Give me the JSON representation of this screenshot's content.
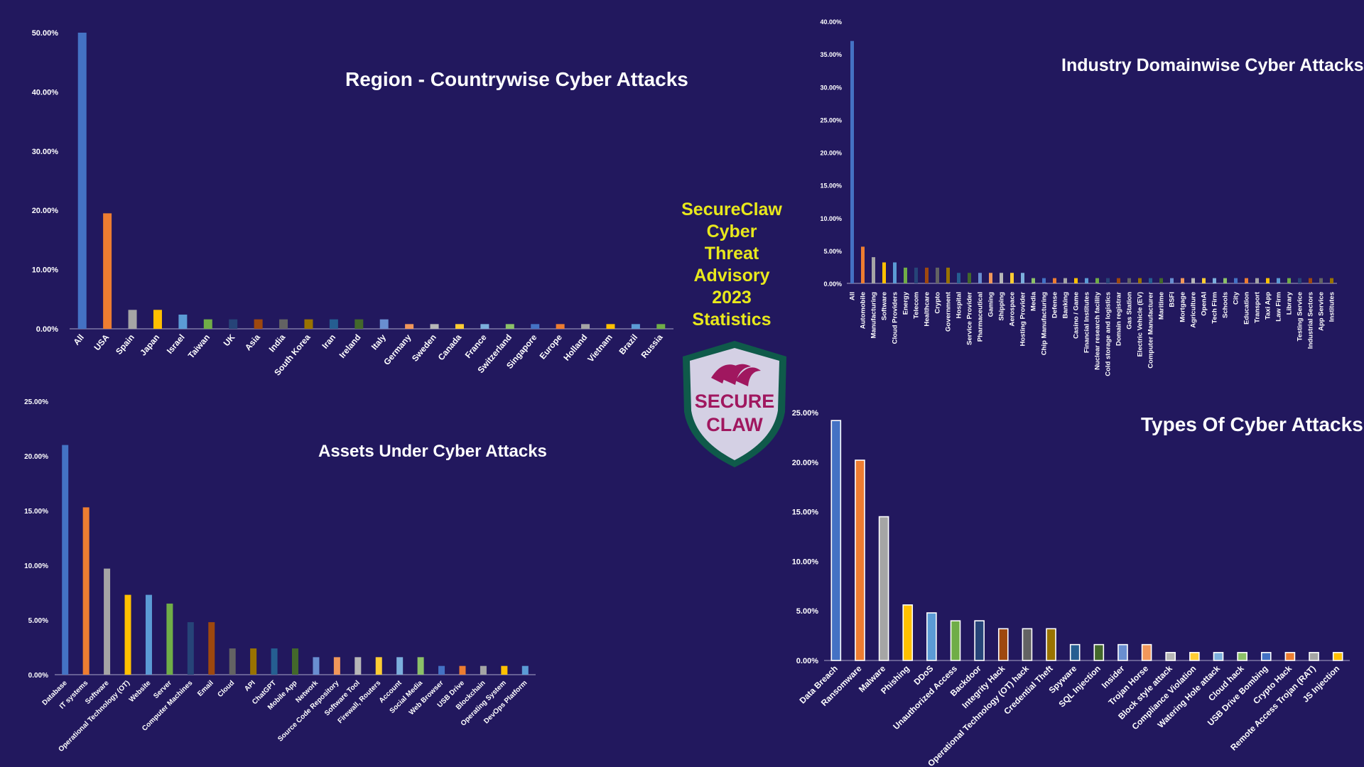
{
  "center_banner": {
    "lines": [
      "SecureClaw",
      "Cyber",
      "Threat",
      "Advisory",
      "2023",
      "Statistics"
    ],
    "text_color": "#e8e81c"
  },
  "logo": {
    "line1": "SECURE",
    "line2": "CLAW",
    "shield_border": "#0f5a4a",
    "shield_fill": "#d4d0e4",
    "text_color": "#a0175f"
  },
  "background": "#22185e",
  "palette": [
    "#4472c4",
    "#ed7d31",
    "#a5a5a5",
    "#ffc000",
    "#5b9bd5",
    "#70ad47",
    "#264478",
    "#9e480e",
    "#636363",
    "#997300",
    "#255e91",
    "#43682b",
    "#698ed0",
    "#f1975a",
    "#b7b7b7",
    "#ffcd33",
    "#7cafdd",
    "#8cc168"
  ],
  "chart_data": [
    {
      "type": "bar",
      "title": "Region - Countrywise Cyber Attacks",
      "categories": [
        "All",
        "USA",
        "Spain",
        "Japan",
        "Israel",
        "Taiwan",
        "UK",
        "Asia",
        "India",
        "South Korea",
        "Iran",
        "Ireland",
        "Italy",
        "Germany",
        "Sweden",
        "Canada",
        "France",
        "Switzerland",
        "Singapore",
        "Europe",
        "Holland",
        "Vietnam",
        "Brazil",
        "Russia"
      ],
      "values": [
        50.0,
        19.5,
        3.2,
        3.2,
        2.4,
        1.6,
        1.6,
        1.6,
        1.6,
        1.6,
        1.6,
        1.6,
        1.6,
        0.8,
        0.8,
        0.8,
        0.8,
        0.8,
        0.8,
        0.8,
        0.8,
        0.8,
        0.8,
        0.8
      ],
      "ylim": [
        0,
        50
      ],
      "yticks": [
        "0.00%",
        "10.00%",
        "20.00%",
        "30.00%",
        "40.00%",
        "50.00%"
      ],
      "bar_style": "solid"
    },
    {
      "type": "bar",
      "title": "Industry Domainwise Cyber Attacks",
      "categories": [
        "All",
        "Automobile",
        "Manufacturing",
        "Software",
        "Cloud Providers",
        "Energy",
        "Telecom",
        "Healthcare",
        "Crypto",
        "Government",
        "Hospital",
        "Service Provider",
        "Pharmaceutical",
        "Gaming",
        "Shipping",
        "Aerospace",
        "Hosting Provider",
        "Media",
        "Chip Manufacturing",
        "Defense",
        "Banking",
        "Casino / Game",
        "Financial Institutes",
        "Nuclear research facility",
        "Cold storage and logistics",
        "Domain registrar",
        "Gas Station",
        "Electric Vehicle (EV)",
        "Computer Manufacturer",
        "Maritime",
        "BSFI",
        "Mortgage",
        "Agriculture",
        "OpenAI",
        "Tech Firm",
        "Schools",
        "City",
        "Education",
        "Transport",
        "Taxi App",
        "Law Firm",
        "Library",
        "Testing Service",
        "Industrial Sectors",
        "App Service",
        "Institutes"
      ],
      "values": [
        37.0,
        5.6,
        4.0,
        3.2,
        3.2,
        2.4,
        2.4,
        2.4,
        2.4,
        2.4,
        1.6,
        1.6,
        1.6,
        1.6,
        1.6,
        1.6,
        1.6,
        0.8,
        0.8,
        0.8,
        0.8,
        0.8,
        0.8,
        0.8,
        0.8,
        0.8,
        0.8,
        0.8,
        0.8,
        0.8,
        0.8,
        0.8,
        0.8,
        0.8,
        0.8,
        0.8,
        0.8,
        0.8,
        0.8,
        0.8,
        0.8,
        0.8,
        0.8,
        0.8,
        0.8,
        0.8
      ],
      "ylim": [
        0,
        40
      ],
      "yticks": [
        "0.00%",
        "5.00%",
        "10.00%",
        "15.00%",
        "20.00%",
        "25.00%",
        "30.00%",
        "35.00%",
        "40.00%"
      ],
      "bar_style": "solid"
    },
    {
      "type": "bar",
      "title": "Assets Under Cyber Attacks",
      "categories": [
        "Database",
        "IT systems",
        "Software",
        "Operational Technology (OT)",
        "Website",
        "Server",
        "Computer Machines",
        "Email",
        "Cloud",
        "API",
        "ChatGPT",
        "Mobile App",
        "Network",
        "Source Code Repository",
        "Software Tool",
        "Firewall, Routers",
        "Account",
        "Social Media",
        "Web Browser",
        "USB Drive",
        "Blockchain",
        "Operating System",
        "DevOps Platform"
      ],
      "values": [
        21.0,
        15.3,
        9.7,
        7.3,
        7.3,
        6.5,
        4.8,
        4.8,
        2.4,
        2.4,
        2.4,
        2.4,
        1.6,
        1.6,
        1.6,
        1.6,
        1.6,
        1.6,
        0.8,
        0.8,
        0.8,
        0.8,
        0.8
      ],
      "ylim": [
        0,
        25
      ],
      "yticks": [
        "0.00%",
        "5.00%",
        "10.00%",
        "15.00%",
        "20.00%",
        "25.00%"
      ],
      "bar_style": "solid"
    },
    {
      "type": "bar",
      "title": "Types Of Cyber Attacks",
      "categories": [
        "Data Breach",
        "Ransomware",
        "Malware",
        "Phishing",
        "DDoS",
        "Unauthorized Access",
        "Backdoor",
        "Integrity Hack",
        "Operational Technology (OT) hack",
        "Credential Theft",
        "Spyware",
        "SQL Injection",
        "Insider",
        "Trojan Horse",
        "Block style attack",
        "Compliance Violation",
        "Watering Hole attack",
        "Cloud hack",
        "USB Drive Bombing",
        "Crypto Hack",
        "Remote Access Trojan (RAT)",
        "JS Injection"
      ],
      "values": [
        24.2,
        20.2,
        14.5,
        5.6,
        4.8,
        4.0,
        4.0,
        3.2,
        3.2,
        3.2,
        1.6,
        1.6,
        1.6,
        1.6,
        0.8,
        0.8,
        0.8,
        0.8,
        0.8,
        0.8,
        0.8,
        0.8
      ],
      "ylim": [
        0,
        25
      ],
      "yticks": [
        "0.00%",
        "5.00%",
        "10.00%",
        "15.00%",
        "20.00%",
        "25.00%"
      ],
      "bar_style": "outlined"
    }
  ]
}
